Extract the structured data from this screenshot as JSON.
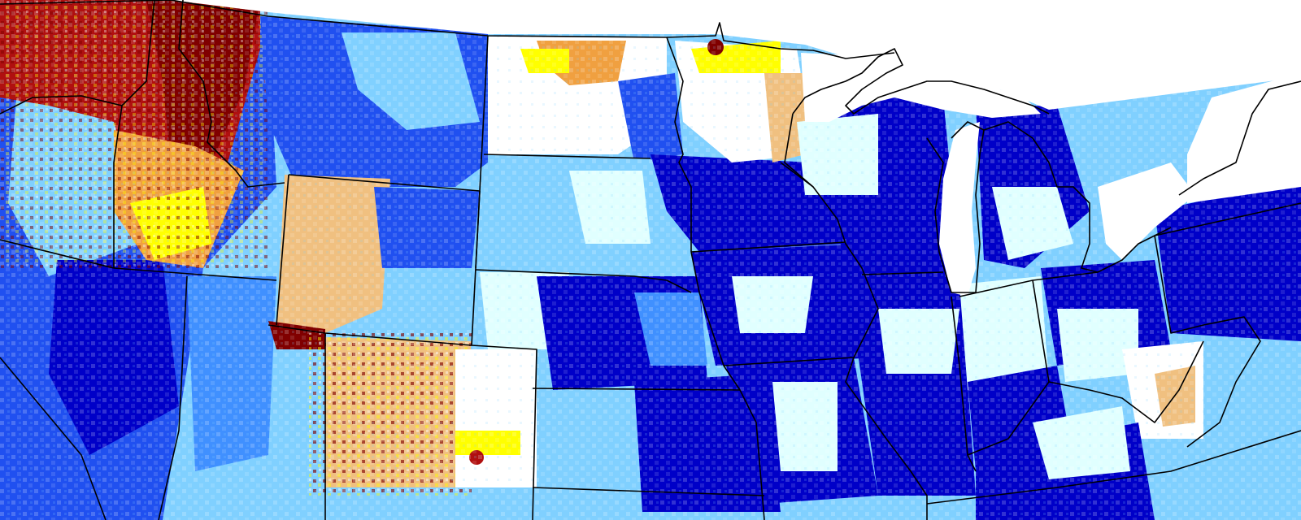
{
  "map": {
    "palette": {
      "dark_red": "#800000",
      "brick": "#b01010",
      "orange": "#f0a040",
      "tan": "#f0c080",
      "yellow": "#ffff00",
      "white": "#ffffff",
      "pale_cyan": "#e0ffff",
      "light_blue": "#80d0ff",
      "sky_blue": "#4090ff",
      "medium_blue": "#2050f0",
      "deep_blue": "#0000c8",
      "water": "#ffffff",
      "border": "#000000"
    },
    "legend": null
  }
}
